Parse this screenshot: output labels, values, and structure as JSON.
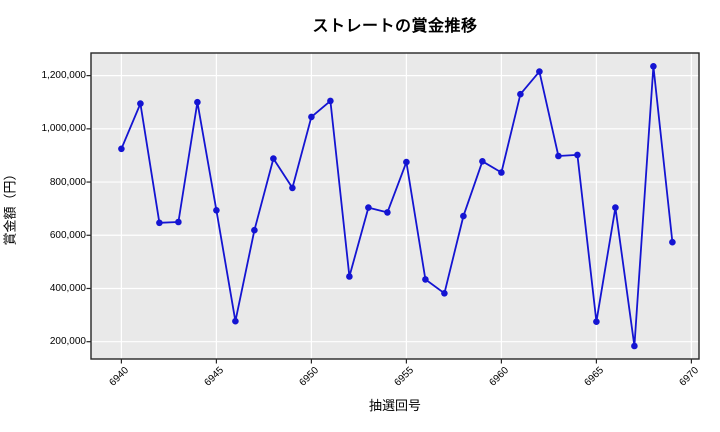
{
  "chart_data": {
    "type": "line",
    "title": "ストレートの賞金推移",
    "xlabel": "抽選回号",
    "ylabel": "賞金額（円）",
    "x": [
      6940,
      6941,
      6942,
      6943,
      6944,
      6945,
      6946,
      6947,
      6948,
      6949,
      6950,
      6951,
      6952,
      6953,
      6954,
      6955,
      6956,
      6957,
      6958,
      6959,
      6960,
      6961,
      6962,
      6963,
      6964,
      6965,
      6966,
      6967,
      6968,
      6969
    ],
    "values": [
      925000,
      1095000,
      647000,
      650000,
      1100000,
      694000,
      277000,
      619000,
      888000,
      778000,
      1045000,
      1105000,
      445000,
      704000,
      686000,
      875000,
      434000,
      382000,
      672000,
      878000,
      836000,
      1130000,
      1215000,
      898000,
      902000,
      275000,
      704000,
      184000,
      1235000,
      574000
    ],
    "x_ticks": [
      6940,
      6945,
      6950,
      6955,
      6960,
      6965,
      6970
    ],
    "x_tick_labels": [
      "6940",
      "6945",
      "6950",
      "6955",
      "6960",
      "6965",
      "6970"
    ],
    "y_ticks": [
      200000,
      400000,
      600000,
      800000,
      1000000,
      1200000
    ],
    "y_tick_labels": [
      "200,000",
      "400,000",
      "600,000",
      "800,000",
      "1,000,000",
      "1,200,000"
    ],
    "xlim": [
      6938.4,
      6970.4
    ],
    "ylim": [
      135000,
      1285000
    ],
    "grid": true,
    "legend": "none",
    "colors": {
      "line": "#1414d2",
      "marker": "#1414d2",
      "plot_bg": "#e9e9e9",
      "grid": "#ffffff",
      "spine": "#262626",
      "text": "#000000",
      "figure_bg": "#ffffff"
    }
  }
}
